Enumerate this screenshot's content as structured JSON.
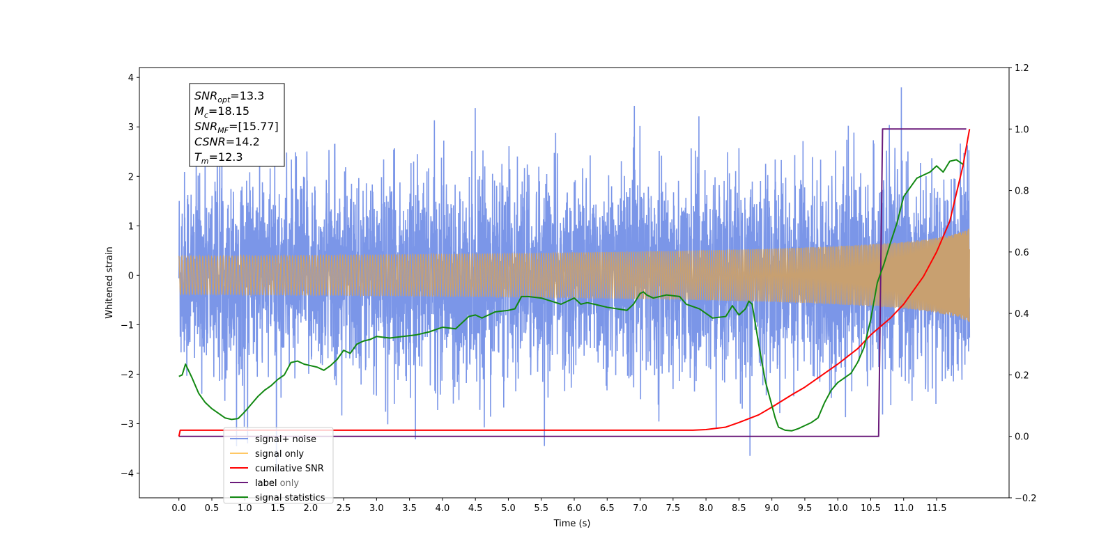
{
  "chart_data": {
    "type": "line",
    "xlabel": "Time (s)",
    "ylabel": "Whitened strain",
    "xlim": [
      -0.6,
      12.6
    ],
    "ylim": [
      -4.5,
      4.2
    ],
    "y2lim": [
      -0.2,
      1.2
    ],
    "x_ticks": [
      "0.0",
      "0.5",
      "1.0",
      "1.5",
      "2.0",
      "2.5",
      "3.0",
      "3.5",
      "4.0",
      "4.5",
      "5.0",
      "5.5",
      "6.0",
      "6.5",
      "7.0",
      "7.5",
      "8.0",
      "8.5",
      "9.0",
      "9.5",
      "10.0",
      "10.5",
      "11.0",
      "11.5"
    ],
    "y_ticks": [
      "4",
      "3",
      "2",
      "1",
      "0",
      "−1",
      "−2",
      "−3",
      "−4"
    ],
    "y2_ticks": [
      "1.2",
      "1.0",
      "0.8",
      "0.6",
      "0.4",
      "0.2",
      "0.0",
      "−0.2"
    ],
    "grid": false,
    "legend_position": "lower-left",
    "legend": [
      {
        "label": "signal+ noise",
        "color": "#7b96e8"
      },
      {
        "label": "signal only",
        "color": "#ffc864"
      },
      {
        "label": "cumilative SNR",
        "color": "#ff0000"
      },
      {
        "label": "label",
        "color": "#6a1a7a"
      },
      {
        "label": "signal statistics",
        "color": "#118811"
      }
    ],
    "legend_ghost": [
      "label only"
    ],
    "annotation": [
      {
        "sym": "SNR",
        "sub": "opt",
        "value": "=13.3"
      },
      {
        "sym": "M",
        "sub": "c",
        "value": "=18.15"
      },
      {
        "sym": "SNR",
        "sub": "MF",
        "value": "=[15.77]"
      },
      {
        "sym": "CSNR",
        "sub": "",
        "value": "=14.2"
      },
      {
        "sym": "T",
        "sub": "m",
        "value": "=12.3"
      }
    ],
    "series": [
      {
        "name": "signal+ noise",
        "color": "#7b96e8",
        "description_stats": {
          "x_range": [
            0.0,
            12.0
          ],
          "typical_range": [
            -2.0,
            2.5
          ],
          "max": 3.8,
          "min": -4.0
        }
      },
      {
        "name": "signal only",
        "color": "#c8a070",
        "chirp": {
          "start": 0.0,
          "end": 12.0,
          "amplitude_at_end": 1.0,
          "visible_from": 7.8
        }
      },
      {
        "name": "cumilative SNR",
        "axis": "right",
        "color": "#ff0000",
        "x": [
          0.0,
          0.02,
          7.5,
          7.8,
          8.0,
          8.3,
          8.5,
          8.8,
          9.0,
          9.3,
          9.5,
          9.8,
          10.0,
          10.3,
          10.5,
          10.8,
          11.0,
          11.3,
          11.5,
          11.7,
          11.9,
          12.0
        ],
        "y": [
          0.0,
          0.02,
          0.02,
          0.02,
          0.022,
          0.03,
          0.045,
          0.07,
          0.095,
          0.135,
          0.16,
          0.205,
          0.235,
          0.285,
          0.33,
          0.385,
          0.43,
          0.52,
          0.6,
          0.7,
          0.88,
          1.0
        ]
      },
      {
        "name": "label",
        "axis": "right",
        "color": "#6a1a7a",
        "x": [
          0.0,
          10.62,
          10.68,
          11.95
        ],
        "y": [
          0.0,
          0.0,
          1.0,
          1.0
        ]
      },
      {
        "name": "signal statistics",
        "axis": "right",
        "color": "#118811",
        "x": [
          0.0,
          0.05,
          0.1,
          0.2,
          0.3,
          0.4,
          0.5,
          0.6,
          0.7,
          0.8,
          0.9,
          1.0,
          1.1,
          1.2,
          1.3,
          1.4,
          1.5,
          1.6,
          1.7,
          1.8,
          1.9,
          2.0,
          2.1,
          2.2,
          2.3,
          2.4,
          2.5,
          2.6,
          2.7,
          2.8,
          2.9,
          3.0,
          3.2,
          3.4,
          3.6,
          3.8,
          4.0,
          4.2,
          4.4,
          4.5,
          4.6,
          4.8,
          5.0,
          5.1,
          5.2,
          5.3,
          5.5,
          5.8,
          5.9,
          6.0,
          6.1,
          6.2,
          6.3,
          6.5,
          6.8,
          6.9,
          7.0,
          7.05,
          7.1,
          7.2,
          7.4,
          7.6,
          7.7,
          7.9,
          8.1,
          8.3,
          8.4,
          8.5,
          8.6,
          8.65,
          8.7,
          8.8,
          8.9,
          9.0,
          9.05,
          9.1,
          9.2,
          9.3,
          9.4,
          9.5,
          9.6,
          9.7,
          9.8,
          9.9,
          10.0,
          10.1,
          10.2,
          10.3,
          10.4,
          10.5,
          10.6,
          10.7,
          10.8,
          10.9,
          11.0,
          11.1,
          11.2,
          11.3,
          11.4,
          11.5,
          11.6,
          11.7,
          11.8,
          11.9
        ],
        "y": [
          0.195,
          0.2,
          0.235,
          0.19,
          0.14,
          0.11,
          0.09,
          0.075,
          0.06,
          0.055,
          0.058,
          0.08,
          0.105,
          0.13,
          0.15,
          0.165,
          0.185,
          0.2,
          0.24,
          0.245,
          0.235,
          0.23,
          0.225,
          0.215,
          0.23,
          0.25,
          0.28,
          0.27,
          0.3,
          0.31,
          0.315,
          0.325,
          0.32,
          0.325,
          0.33,
          0.34,
          0.355,
          0.35,
          0.39,
          0.395,
          0.385,
          0.405,
          0.41,
          0.415,
          0.455,
          0.455,
          0.45,
          0.43,
          0.44,
          0.45,
          0.43,
          0.435,
          0.43,
          0.42,
          0.41,
          0.43,
          0.465,
          0.47,
          0.46,
          0.45,
          0.46,
          0.455,
          0.43,
          0.415,
          0.385,
          0.39,
          0.425,
          0.395,
          0.415,
          0.44,
          0.43,
          0.3,
          0.18,
          0.1,
          0.06,
          0.03,
          0.02,
          0.018,
          0.025,
          0.035,
          0.045,
          0.06,
          0.11,
          0.15,
          0.175,
          0.19,
          0.205,
          0.24,
          0.29,
          0.38,
          0.5,
          0.56,
          0.63,
          0.695,
          0.78,
          0.81,
          0.84,
          0.85,
          0.86,
          0.88,
          0.86,
          0.895,
          0.9,
          0.885
        ]
      }
    ]
  }
}
